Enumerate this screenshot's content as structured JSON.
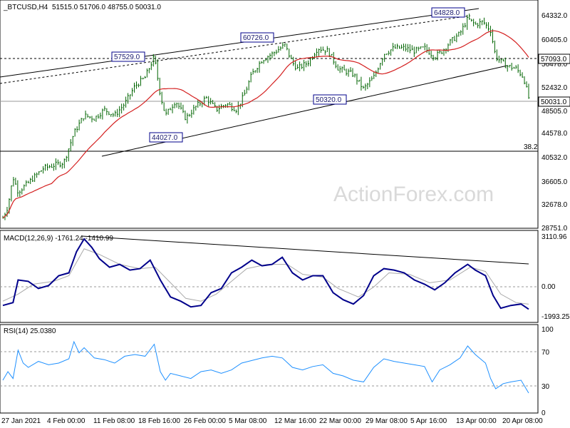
{
  "header": {
    "symbol": "_BTCUSD,H4",
    "ohlc": "51515.0 51706.0 48755.0 50031.0"
  },
  "watermark": "ActionForex.com",
  "colors": {
    "candle": "#006400",
    "ma": "#d42020",
    "macd": "#00008b",
    "signal": "#a9a9a9",
    "rsi": "#1e90ff",
    "trend": "#000000",
    "callout_box": "#00008b"
  },
  "chart_data": [
    {
      "type": "candlestick",
      "title": "_BTCUSD,H4",
      "ylim": [
        28000,
        66200
      ],
      "y_ticks": [
        "64332.0",
        "60405.0",
        "56478.0",
        "52432.0",
        "48505.0",
        "44578.0",
        "40532.0",
        "36605.0",
        "32678.0",
        "28751.0"
      ],
      "price_labels": {
        "current": "50031.0",
        "level": "57093.0"
      },
      "fib_label": "38.2",
      "overlay": "moving average",
      "annotations": [
        "57529.0",
        "60726.0",
        "44027.0",
        "50320.0",
        "64828.0"
      ],
      "close_path": [
        {
          "t": 0,
          "v": 29500
        },
        {
          "t": 1,
          "v": 31500
        },
        {
          "t": 2,
          "v": 36500
        },
        {
          "t": 3,
          "v": 34000
        },
        {
          "t": 5,
          "v": 35500
        },
        {
          "t": 8,
          "v": 38000
        },
        {
          "t": 10,
          "v": 38500
        },
        {
          "t": 12,
          "v": 39000
        },
        {
          "t": 14,
          "v": 44000
        },
        {
          "t": 16,
          "v": 47000
        },
        {
          "t": 18,
          "v": 46500
        },
        {
          "t": 20,
          "v": 48000
        },
        {
          "t": 22,
          "v": 47000
        },
        {
          "t": 24,
          "v": 49000
        },
        {
          "t": 26,
          "v": 52000
        },
        {
          "t": 28,
          "v": 53500
        },
        {
          "t": 29.8,
          "v": 57000
        },
        {
          "t": 31,
          "v": 50500
        },
        {
          "t": 32,
          "v": 47000
        },
        {
          "t": 34,
          "v": 49500
        },
        {
          "t": 36,
          "v": 46500
        },
        {
          "t": 38,
          "v": 48500
        },
        {
          "t": 40,
          "v": 50000
        },
        {
          "t": 42,
          "v": 48000
        },
        {
          "t": 44,
          "v": 49000
        },
        {
          "t": 46,
          "v": 48000
        },
        {
          "t": 47.5,
          "v": 50500
        },
        {
          "t": 49,
          "v": 54000
        },
        {
          "t": 51,
          "v": 56500
        },
        {
          "t": 53,
          "v": 57500
        },
        {
          "t": 55.5,
          "v": 59000
        },
        {
          "t": 57,
          "v": 56000
        },
        {
          "t": 58,
          "v": 55000
        },
        {
          "t": 60,
          "v": 56000
        },
        {
          "t": 62,
          "v": 58500
        },
        {
          "t": 64,
          "v": 58000
        },
        {
          "t": 66,
          "v": 55000
        },
        {
          "t": 69,
          "v": 54000
        },
        {
          "t": 71,
          "v": 51500
        },
        {
          "t": 73,
          "v": 53500
        },
        {
          "t": 75,
          "v": 57500
        },
        {
          "t": 77,
          "v": 58500
        },
        {
          "t": 79,
          "v": 58500
        },
        {
          "t": 81,
          "v": 58000
        },
        {
          "t": 83,
          "v": 58500
        },
        {
          "t": 85,
          "v": 57000
        },
        {
          "t": 86.5,
          "v": 58000
        },
        {
          "t": 88,
          "v": 59500
        },
        {
          "t": 90,
          "v": 61000
        },
        {
          "t": 91.5,
          "v": 63500
        },
        {
          "t": 93,
          "v": 62500
        },
        {
          "t": 94.5,
          "v": 63000
        },
        {
          "t": 96,
          "v": 61500
        },
        {
          "t": 97,
          "v": 57000
        },
        {
          "t": 99,
          "v": 55500
        },
        {
          "t": 101,
          "v": 55000
        },
        {
          "t": 102.5,
          "v": 53500
        },
        {
          "t": 103.5,
          "v": 50031
        }
      ]
    },
    {
      "type": "line",
      "title": "MACD(12,26,9) -1761.24 -1410.99",
      "ylim": [
        -2600,
        3700
      ],
      "y_ticks": [
        "3110.96",
        "0.00",
        "-1993.25"
      ],
      "series": [
        {
          "points": [
            {
              "t": 0,
              "v": -1500
            },
            {
              "t": 2,
              "v": -1300
            },
            {
              "t": 3,
              "v": 300
            },
            {
              "t": 5,
              "v": 200
            },
            {
              "t": 7,
              "v": -300
            },
            {
              "t": 9,
              "v": -100
            },
            {
              "t": 11,
              "v": 600
            },
            {
              "t": 13,
              "v": 800
            },
            {
              "t": 14.5,
              "v": 2300
            },
            {
              "t": 16,
              "v": 3200
            },
            {
              "t": 17.5,
              "v": 2600
            },
            {
              "t": 19,
              "v": 1800
            },
            {
              "t": 21,
              "v": 1200
            },
            {
              "t": 23,
              "v": 1400
            },
            {
              "t": 25,
              "v": 1000
            },
            {
              "t": 27,
              "v": 1100
            },
            {
              "t": 29,
              "v": 1700
            },
            {
              "t": 31,
              "v": 300
            },
            {
              "t": 33,
              "v": -900
            },
            {
              "t": 35,
              "v": -1200
            },
            {
              "t": 37,
              "v": -1600
            },
            {
              "t": 39,
              "v": -1500
            },
            {
              "t": 41,
              "v": -600
            },
            {
              "t": 43,
              "v": -300
            },
            {
              "t": 45,
              "v": 800
            },
            {
              "t": 47,
              "v": 1200
            },
            {
              "t": 49,
              "v": 1700
            },
            {
              "t": 51,
              "v": 1300
            },
            {
              "t": 53,
              "v": 1400
            },
            {
              "t": 55,
              "v": 1900
            },
            {
              "t": 57,
              "v": 800
            },
            {
              "t": 59,
              "v": 300
            },
            {
              "t": 61,
              "v": 600
            },
            {
              "t": 63,
              "v": 600
            },
            {
              "t": 65,
              "v": -600
            },
            {
              "t": 67,
              "v": -1100
            },
            {
              "t": 69,
              "v": -1400
            },
            {
              "t": 71,
              "v": -800
            },
            {
              "t": 73,
              "v": 600
            },
            {
              "t": 75,
              "v": 1100
            },
            {
              "t": 77,
              "v": 1000
            },
            {
              "t": 79,
              "v": 800
            },
            {
              "t": 81,
              "v": 300
            },
            {
              "t": 83,
              "v": 0
            },
            {
              "t": 85,
              "v": -400
            },
            {
              "t": 87,
              "v": 100
            },
            {
              "t": 89,
              "v": 800
            },
            {
              "t": 91.5,
              "v": 1400
            },
            {
              "t": 93,
              "v": 1000
            },
            {
              "t": 95,
              "v": 600
            },
            {
              "t": 96.5,
              "v": -800
            },
            {
              "t": 98,
              "v": -1700
            },
            {
              "t": 100,
              "v": -1500
            },
            {
              "t": 102,
              "v": -1400
            },
            {
              "t": 103.5,
              "v": -1761
            }
          ]
        },
        {
          "points": [
            {
              "t": 0,
              "v": -1200
            },
            {
              "t": 3,
              "v": -700
            },
            {
              "t": 6,
              "v": 0
            },
            {
              "t": 10,
              "v": 200
            },
            {
              "t": 13,
              "v": 600
            },
            {
              "t": 16,
              "v": 2500
            },
            {
              "t": 19,
              "v": 2100
            },
            {
              "t": 23,
              "v": 1400
            },
            {
              "t": 27,
              "v": 1100
            },
            {
              "t": 30,
              "v": 1200
            },
            {
              "t": 33,
              "v": 100
            },
            {
              "t": 36,
              "v": -1000
            },
            {
              "t": 39,
              "v": -1200
            },
            {
              "t": 42,
              "v": -700
            },
            {
              "t": 45,
              "v": 200
            },
            {
              "t": 48,
              "v": 1100
            },
            {
              "t": 52,
              "v": 1400
            },
            {
              "t": 56,
              "v": 1400
            },
            {
              "t": 59,
              "v": 700
            },
            {
              "t": 63,
              "v": 500
            },
            {
              "t": 66,
              "v": -300
            },
            {
              "t": 70,
              "v": -900
            },
            {
              "t": 73,
              "v": -200
            },
            {
              "t": 76,
              "v": 800
            },
            {
              "t": 80,
              "v": 700
            },
            {
              "t": 84,
              "v": 100
            },
            {
              "t": 88,
              "v": 300
            },
            {
              "t": 92,
              "v": 1200
            },
            {
              "t": 95,
              "v": 900
            },
            {
              "t": 98,
              "v": -700
            },
            {
              "t": 101,
              "v": -1300
            },
            {
              "t": 103.5,
              "v": -1411
            }
          ]
        }
      ]
    },
    {
      "type": "line",
      "title": "RSI(14) 25.0380",
      "ylim": [
        0,
        100
      ],
      "y_ticks": [
        "100",
        "70",
        "30",
        "0"
      ],
      "levels": [
        70,
        30
      ],
      "series": [
        {
          "points": [
            {
              "t": 0,
              "v": 40
            },
            {
              "t": 1,
              "v": 50
            },
            {
              "t": 2,
              "v": 42
            },
            {
              "t": 3,
              "v": 75
            },
            {
              "t": 4,
              "v": 60
            },
            {
              "t": 5,
              "v": 55
            },
            {
              "t": 7,
              "v": 62
            },
            {
              "t": 9,
              "v": 58
            },
            {
              "t": 11,
              "v": 60
            },
            {
              "t": 13,
              "v": 65
            },
            {
              "t": 14,
              "v": 85
            },
            {
              "t": 15,
              "v": 72
            },
            {
              "t": 16,
              "v": 78
            },
            {
              "t": 18,
              "v": 66
            },
            {
              "t": 20,
              "v": 64
            },
            {
              "t": 22,
              "v": 60
            },
            {
              "t": 24,
              "v": 68
            },
            {
              "t": 26,
              "v": 70
            },
            {
              "t": 28,
              "v": 68
            },
            {
              "t": 29.8,
              "v": 82
            },
            {
              "t": 31,
              "v": 50
            },
            {
              "t": 32,
              "v": 40
            },
            {
              "t": 33,
              "v": 48
            },
            {
              "t": 35,
              "v": 45
            },
            {
              "t": 37,
              "v": 42
            },
            {
              "t": 39,
              "v": 50
            },
            {
              "t": 41,
              "v": 52
            },
            {
              "t": 43,
              "v": 48
            },
            {
              "t": 45,
              "v": 52
            },
            {
              "t": 47,
              "v": 60
            },
            {
              "t": 49,
              "v": 63
            },
            {
              "t": 51,
              "v": 66
            },
            {
              "t": 53,
              "v": 68
            },
            {
              "t": 55,
              "v": 66
            },
            {
              "t": 57,
              "v": 55
            },
            {
              "t": 59,
              "v": 52
            },
            {
              "t": 61,
              "v": 56
            },
            {
              "t": 63,
              "v": 58
            },
            {
              "t": 65,
              "v": 48
            },
            {
              "t": 67,
              "v": 45
            },
            {
              "t": 69,
              "v": 40
            },
            {
              "t": 71,
              "v": 38
            },
            {
              "t": 73,
              "v": 55
            },
            {
              "t": 75,
              "v": 65
            },
            {
              "t": 77,
              "v": 62
            },
            {
              "t": 79,
              "v": 60
            },
            {
              "t": 81,
              "v": 58
            },
            {
              "t": 83,
              "v": 56
            },
            {
              "t": 84.5,
              "v": 38
            },
            {
              "t": 86,
              "v": 52
            },
            {
              "t": 88,
              "v": 58
            },
            {
              "t": 90,
              "v": 66
            },
            {
              "t": 91.5,
              "v": 80
            },
            {
              "t": 93,
              "v": 70
            },
            {
              "t": 95,
              "v": 60
            },
            {
              "t": 96,
              "v": 42
            },
            {
              "t": 97,
              "v": 30
            },
            {
              "t": 98.5,
              "v": 36
            },
            {
              "t": 100,
              "v": 38
            },
            {
              "t": 102,
              "v": 40
            },
            {
              "t": 103.5,
              "v": 25
            }
          ]
        }
      ]
    }
  ],
  "x_labels": [
    "27 Jan 2021",
    "4 Feb 00:00",
    "11 Feb 08:00",
    "18 Feb 16:00",
    "26 Feb 00:00",
    "5 Mar 08:00",
    "12 Mar 16:00",
    "22 Mar 00:00",
    "29 Mar 08:00",
    "5 Apr 16:00",
    "13 Apr 00:00",
    "20 Apr 08:00"
  ]
}
